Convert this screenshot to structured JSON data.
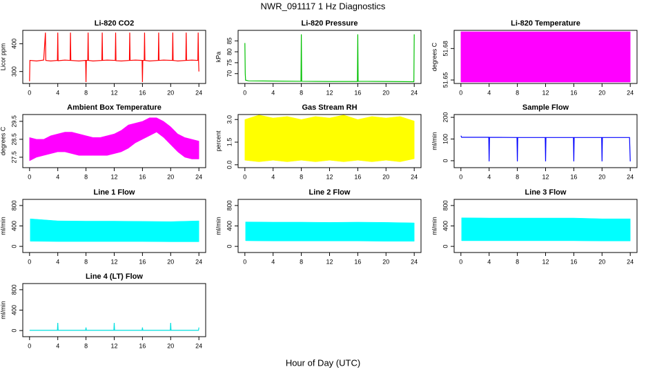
{
  "title": "NWR_091117  1 Hz Diagnostics",
  "xlabel": "Hour of Day (UTC)",
  "chart_data": [
    {
      "type": "line",
      "title": "Li-820 CO2",
      "ylabel": "Licor ppm",
      "color": "#ff0000",
      "x": [
        0,
        0.05,
        1,
        2,
        2.25,
        2.3,
        3,
        3.95,
        4,
        4.05,
        5,
        5.75,
        5.8,
        5.85,
        7,
        7.95,
        8,
        8.05,
        8.25,
        8.3,
        8.35,
        9,
        10.25,
        10.3,
        10.35,
        11,
        12.15,
        12.2,
        12.25,
        13,
        14.15,
        14.2,
        14.25,
        15,
        15.95,
        16,
        16.05,
        16.25,
        16.3,
        16.35,
        17,
        18.25,
        18.3,
        18.35,
        19,
        20.25,
        20.3,
        20.35,
        21,
        22.15,
        22.2,
        22.25,
        23,
        23.85,
        23.9,
        23.95,
        24
      ],
      "values": [
        265,
        340,
        338,
        341,
        440,
        340,
        338,
        340,
        440,
        339,
        341,
        340,
        440,
        340,
        338,
        340,
        262,
        340,
        340,
        440,
        340,
        338,
        340,
        440,
        340,
        341,
        340,
        440,
        339,
        338,
        340,
        440,
        340,
        341,
        340,
        262,
        340,
        340,
        440,
        340,
        338,
        340,
        440,
        340,
        341,
        340,
        440,
        340,
        338,
        340,
        440,
        340,
        341,
        340,
        440,
        340,
        300
      ],
      "xlim": [
        -0.96,
        24.96
      ],
      "xticks": [
        0,
        4,
        8,
        12,
        16,
        20,
        24
      ],
      "ylim": [
        257,
        448
      ],
      "yticks": [
        300,
        400
      ]
    },
    {
      "type": "line",
      "title": "Li-820 Pressure",
      "ylabel": "kPa",
      "color": "#00c000",
      "x": [
        0,
        0.05,
        0.1,
        0.5,
        4,
        7.95,
        8,
        8.05,
        12,
        15.95,
        16,
        16.05,
        20,
        23.95,
        24
      ],
      "values": [
        84,
        70,
        67,
        66.7,
        66.6,
        66.5,
        88,
        66.5,
        66.4,
        66.4,
        88,
        66.5,
        66.4,
        66.3,
        88
      ],
      "xlim": [
        -0.96,
        24.96
      ],
      "xticks": [
        0,
        4,
        8,
        12,
        16,
        20,
        24
      ],
      "ylim": [
        65.5,
        89.8
      ],
      "yticks": [
        70,
        75,
        80,
        85
      ]
    },
    {
      "type": "band",
      "title": "Li-820 Temperature",
      "ylabel": "degrees C",
      "color": "#ff00ff",
      "x": [
        0,
        24
      ],
      "low": [
        51.648,
        51.648
      ],
      "high": [
        51.696,
        51.696
      ],
      "xlim": [
        -0.96,
        24.96
      ],
      "xticks": [
        0,
        4,
        8,
        12,
        16,
        20,
        24
      ],
      "ylim": [
        51.6467,
        51.6973
      ],
      "yticks": [
        51.65,
        51.68
      ]
    },
    {
      "type": "band",
      "title": "Ambient Box Temperature",
      "ylabel": "degrees C",
      "color": "#ff00ff",
      "x": [
        0,
        1,
        2,
        3,
        4,
        5,
        6,
        7,
        8,
        9,
        10,
        11,
        12,
        13,
        14,
        15,
        16,
        17,
        18,
        19,
        20,
        21,
        22,
        23,
        24
      ],
      "low": [
        27.3,
        27.5,
        27.6,
        27.7,
        27.8,
        27.8,
        27.7,
        27.6,
        27.6,
        27.6,
        27.6,
        27.6,
        27.7,
        27.8,
        28.0,
        28.3,
        28.5,
        28.7,
        28.9,
        28.6,
        28.2,
        27.8,
        27.5,
        27.4,
        27.4
      ],
      "high": [
        28.6,
        28.5,
        28.5,
        28.7,
        28.8,
        28.9,
        28.9,
        28.8,
        28.7,
        28.6,
        28.6,
        28.7,
        28.8,
        29.0,
        29.3,
        29.4,
        29.5,
        29.7,
        29.7,
        29.5,
        29.2,
        28.8,
        28.6,
        28.5,
        28.4
      ],
      "xlim": [
        -0.96,
        24.96
      ],
      "xticks": [
        0,
        4,
        8,
        12,
        16,
        20,
        24
      ],
      "ylim": [
        26.92,
        29.88
      ],
      "yticks": [
        27.5,
        28.5,
        29.5
      ]
    },
    {
      "type": "band",
      "title": "Gas Stream RH",
      "ylabel": "percent",
      "color": "#ffff00",
      "x": [
        0,
        2,
        4,
        6,
        8,
        10,
        12,
        14,
        16,
        18,
        20,
        22,
        24
      ],
      "low": [
        0.3,
        0.2,
        0.3,
        0.2,
        0.3,
        0.2,
        0.3,
        0.2,
        0.3,
        0.2,
        0.3,
        0.2,
        0.4
      ],
      "high": [
        3.0,
        3.3,
        3.1,
        3.2,
        3.0,
        3.2,
        3.1,
        3.3,
        3.0,
        3.2,
        3.1,
        3.2,
        2.9
      ],
      "xlim": [
        -0.96,
        24.96
      ],
      "xticks": [
        0,
        4,
        8,
        12,
        16,
        20,
        24
      ],
      "ylim": [
        -0.19,
        3.33
      ],
      "yticks": [
        {
          "value": 0,
          "label": "0.0"
        },
        1.5,
        {
          "value": 3,
          "label": "3.0"
        }
      ]
    },
    {
      "type": "line",
      "title": "Sample Flow",
      "ylabel": "ml/min",
      "color": "#0000ff",
      "x": [
        0,
        0.1,
        3.95,
        4,
        4.05,
        7.95,
        8,
        8.05,
        11.95,
        12,
        12.05,
        15.95,
        16,
        16.05,
        19.95,
        20,
        20.05,
        23.9,
        24
      ],
      "values": [
        115,
        108,
        108,
        -3,
        108,
        107,
        -3,
        107,
        107,
        -3,
        107,
        107,
        -3,
        107,
        107,
        -3,
        107,
        107,
        -3
      ],
      "xlim": [
        -0.96,
        24.96
      ],
      "xticks": [
        0,
        4,
        8,
        12,
        16,
        20,
        24
      ],
      "ylim": [
        -32,
        213
      ],
      "yticks": [
        0,
        100,
        200
      ]
    },
    {
      "type": "band",
      "title": "Line 1 Flow",
      "ylabel": "ml/min",
      "color": "#00ffff",
      "x": [
        0.1,
        4,
        8,
        12,
        16,
        20,
        24
      ],
      "low": [
        100,
        95,
        95,
        95,
        95,
        90,
        90
      ],
      "high": [
        540,
        500,
        495,
        495,
        490,
        485,
        500
      ],
      "xlim": [
        -0.96,
        24.96
      ],
      "xticks": [
        0,
        4,
        8,
        12,
        16,
        20,
        24
      ],
      "ylim": [
        -120,
        920
      ],
      "yticks": [
        0,
        400,
        800
      ]
    },
    {
      "type": "band",
      "title": "Line 2 Flow",
      "ylabel": "ml/min",
      "color": "#00ffff",
      "x": [
        0.1,
        4,
        8,
        12,
        16,
        20,
        24
      ],
      "low": [
        110,
        105,
        105,
        105,
        105,
        100,
        100
      ],
      "high": [
        480,
        475,
        475,
        470,
        475,
        470,
        460
      ],
      "xlim": [
        -0.96,
        24.96
      ],
      "xticks": [
        0,
        4,
        8,
        12,
        16,
        20,
        24
      ],
      "ylim": [
        -120,
        920
      ],
      "yticks": [
        0,
        400,
        800
      ]
    },
    {
      "type": "band",
      "title": "Line 3 Flow",
      "ylabel": "ml/min",
      "color": "#00ffff",
      "x": [
        0.1,
        4,
        8,
        12,
        16,
        20,
        24
      ],
      "low": [
        110,
        110,
        110,
        110,
        110,
        105,
        105
      ],
      "high": [
        560,
        555,
        555,
        555,
        555,
        540,
        540
      ],
      "xlim": [
        -0.96,
        24.96
      ],
      "xticks": [
        0,
        4,
        8,
        12,
        16,
        20,
        24
      ],
      "ylim": [
        -120,
        920
      ],
      "yticks": [
        0,
        400,
        800
      ]
    },
    {
      "type": "line",
      "title": "Line 4 (LT) Flow",
      "ylabel": "ml/min",
      "color": "#00e0e0",
      "x": [
        0,
        3.95,
        4,
        4.05,
        7.95,
        8,
        8.05,
        11.95,
        12,
        12.05,
        15.95,
        16,
        16.05,
        19.95,
        20,
        20.05,
        23.95,
        24
      ],
      "values": [
        5,
        5,
        150,
        5,
        5,
        60,
        5,
        5,
        150,
        5,
        5,
        60,
        5,
        5,
        150,
        5,
        5,
        60
      ],
      "xlim": [
        -0.96,
        24.96
      ],
      "xticks": [
        0,
        4,
        8,
        12,
        16,
        20,
        24
      ],
      "ylim": [
        -120,
        920
      ],
      "yticks": [
        0,
        400,
        800
      ]
    }
  ]
}
